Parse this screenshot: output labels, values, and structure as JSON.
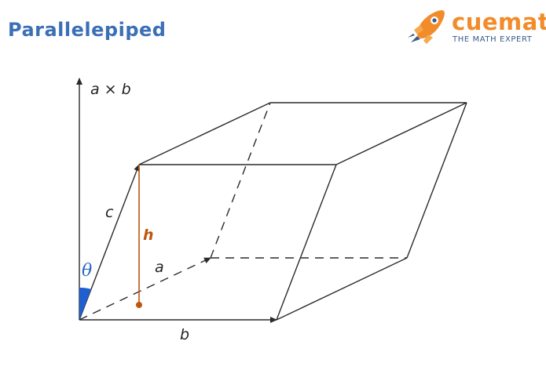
{
  "title": "Parallelepiped",
  "logo": {
    "name": "cuemath",
    "tagline": "THE MATH EXPERT",
    "icon": "rocket-icon"
  },
  "labels": {
    "cross": "a × b",
    "c": "c",
    "h": "h",
    "a": "a",
    "b": "b",
    "theta": "θ"
  },
  "colors": {
    "title": "#3b6fb6",
    "logo": "#f28c2a",
    "height": "#c0560e",
    "angle": "#2a66c4"
  }
}
